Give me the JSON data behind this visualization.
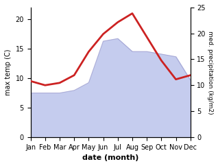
{
  "months": [
    "Jan",
    "Feb",
    "Mar",
    "Apr",
    "May",
    "Jun",
    "Jul",
    "Aug",
    "Sep",
    "Oct",
    "Nov",
    "Dec"
  ],
  "temp": [
    9.5,
    8.8,
    9.2,
    10.5,
    14.5,
    17.5,
    19.5,
    21.0,
    17.0,
    13.0,
    9.8,
    10.5
  ],
  "precip": [
    8.5,
    8.5,
    8.5,
    9.0,
    10.5,
    18.5,
    19.0,
    16.5,
    16.5,
    16.0,
    15.5,
    11.0
  ],
  "temp_color": "#cc2222",
  "precip_fill_color": "#c5ccee",
  "precip_edge_color": "#9999cc",
  "ylim_temp": [
    0,
    22
  ],
  "ylim_precip": [
    0,
    25
  ],
  "ylabel_left": "max temp (C)",
  "ylabel_right": "med. precipitation (kg/m2)",
  "xlabel": "date (month)",
  "temp_yticks": [
    0,
    5,
    10,
    15,
    20
  ],
  "precip_yticks": [
    0,
    5,
    10,
    15,
    20,
    25
  ],
  "fig_width": 3.18,
  "fig_height": 2.42,
  "dpi": 100
}
